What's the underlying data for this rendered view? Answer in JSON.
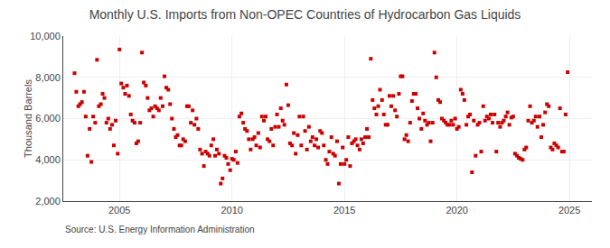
{
  "chart_data": {
    "type": "scatter",
    "title": "Monthly U.S. Imports from Non-OPEC Countries of Hydrocarbon Gas Liquids",
    "y_label": "Thousand Barrels",
    "annotations": [
      "Source: U.S. Energy Information Administration"
    ],
    "color": "#cc0000",
    "marker": "square",
    "grid": true,
    "xlim": [
      2002.5,
      2026.0
    ],
    "xticks": [
      2005,
      2010,
      2015,
      2020,
      2025
    ],
    "ylim": [
      2000,
      10000
    ],
    "yticks": [
      {
        "value": 2000,
        "label": "2,000"
      },
      {
        "value": 4000,
        "label": "4,000"
      },
      {
        "value": 6000,
        "label": "6,000"
      },
      {
        "value": 8000,
        "label": "8,000"
      },
      {
        "value": 10000,
        "label": "10,000"
      }
    ],
    "x": [
      2003.0,
      2003.08,
      2003.17,
      2003.25,
      2003.33,
      2003.42,
      2003.5,
      2003.58,
      2003.67,
      2003.75,
      2003.83,
      2003.92,
      2004.0,
      2004.08,
      2004.17,
      2004.25,
      2004.33,
      2004.42,
      2004.5,
      2004.58,
      2004.67,
      2004.75,
      2004.83,
      2004.92,
      2005.0,
      2005.08,
      2005.17,
      2005.25,
      2005.33,
      2005.42,
      2005.5,
      2005.58,
      2005.67,
      2005.75,
      2005.83,
      2005.92,
      2006.0,
      2006.08,
      2006.17,
      2006.25,
      2006.33,
      2006.42,
      2006.5,
      2006.58,
      2006.67,
      2006.75,
      2006.83,
      2006.92,
      2007.0,
      2007.08,
      2007.17,
      2007.25,
      2007.33,
      2007.42,
      2007.5,
      2007.58,
      2007.67,
      2007.75,
      2007.83,
      2007.92,
      2008.0,
      2008.08,
      2008.17,
      2008.25,
      2008.33,
      2008.42,
      2008.5,
      2008.58,
      2008.67,
      2008.75,
      2008.83,
      2008.92,
      2009.0,
      2009.08,
      2009.17,
      2009.25,
      2009.33,
      2009.42,
      2009.5,
      2009.58,
      2009.67,
      2009.75,
      2009.83,
      2009.92,
      2010.0,
      2010.08,
      2010.17,
      2010.25,
      2010.33,
      2010.42,
      2010.5,
      2010.58,
      2010.67,
      2010.75,
      2010.83,
      2010.92,
      2011.0,
      2011.08,
      2011.17,
      2011.25,
      2011.33,
      2011.42,
      2011.5,
      2011.58,
      2011.67,
      2011.75,
      2011.83,
      2011.92,
      2012.0,
      2012.08,
      2012.17,
      2012.25,
      2012.33,
      2012.42,
      2012.5,
      2012.58,
      2012.67,
      2012.75,
      2012.83,
      2012.92,
      2013.0,
      2013.08,
      2013.17,
      2013.25,
      2013.33,
      2013.42,
      2013.5,
      2013.58,
      2013.67,
      2013.75,
      2013.83,
      2013.92,
      2014.0,
      2014.08,
      2014.17,
      2014.25,
      2014.33,
      2014.42,
      2014.5,
      2014.58,
      2014.67,
      2014.75,
      2014.83,
      2014.92,
      2015.0,
      2015.08,
      2015.17,
      2015.25,
      2015.33,
      2015.42,
      2015.5,
      2015.58,
      2015.67,
      2015.75,
      2015.83,
      2015.92,
      2016.0,
      2016.08,
      2016.17,
      2016.25,
      2016.33,
      2016.42,
      2016.5,
      2016.58,
      2016.67,
      2016.75,
      2016.83,
      2016.92,
      2017.0,
      2017.08,
      2017.17,
      2017.25,
      2017.33,
      2017.42,
      2017.5,
      2017.58,
      2017.67,
      2017.75,
      2017.83,
      2017.92,
      2018.0,
      2018.08,
      2018.17,
      2018.25,
      2018.33,
      2018.42,
      2018.5,
      2018.58,
      2018.67,
      2018.75,
      2018.83,
      2018.92,
      2019.0,
      2019.08,
      2019.17,
      2019.25,
      2019.33,
      2019.42,
      2019.5,
      2019.58,
      2019.67,
      2019.75,
      2019.83,
      2019.92,
      2020.0,
      2020.08,
      2020.17,
      2020.25,
      2020.33,
      2020.42,
      2020.5,
      2020.58,
      2020.67,
      2020.75,
      2020.83,
      2020.92,
      2021.0,
      2021.08,
      2021.17,
      2021.25,
      2021.33,
      2021.42,
      2021.5,
      2021.58,
      2021.67,
      2021.75,
      2021.83,
      2021.92,
      2022.0,
      2022.08,
      2022.17,
      2022.25,
      2022.33,
      2022.42,
      2022.5,
      2022.58,
      2022.67,
      2022.75,
      2022.83,
      2022.92,
      2023.0,
      2023.08,
      2023.17,
      2023.25,
      2023.33,
      2023.42,
      2023.5,
      2023.58,
      2023.67,
      2023.75,
      2023.83,
      2023.92,
      2024.0,
      2024.08,
      2024.17,
      2024.25,
      2024.33,
      2024.42,
      2024.5,
      2024.58,
      2024.67,
      2024.75,
      2024.83,
      2024.92
    ],
    "values": [
      8200,
      7300,
      6600,
      6700,
      6800,
      7300,
      6100,
      4200,
      5500,
      3900,
      6100,
      5800,
      8850,
      6600,
      6700,
      7200,
      7000,
      5800,
      6000,
      5500,
      5700,
      4700,
      5900,
      4300,
      9350,
      7700,
      7500,
      7200,
      7600,
      7100,
      6200,
      5900,
      5800,
      4800,
      4900,
      5800,
      9200,
      7750,
      7600,
      7000,
      6400,
      6500,
      6100,
      6600,
      6500,
      6400,
      7000,
      6600,
      8050,
      7500,
      7400,
      6700,
      6000,
      5500,
      5100,
      5200,
      4700,
      4700,
      5000,
      4900,
      6600,
      6600,
      5800,
      6400,
      5700,
      6000,
      5500,
      4500,
      4300,
      3700,
      4400,
      4300,
      4200,
      4700,
      5000,
      4200,
      4500,
      4300,
      2850,
      3100,
      4200,
      4100,
      3800,
      3500,
      4050,
      4000,
      4400,
      3850,
      6100,
      6250,
      5800,
      5500,
      5400,
      5000,
      4500,
      5000,
      5100,
      4700,
      5300,
      4600,
      6100,
      5900,
      6100,
      5000,
      4900,
      5500,
      4700,
      5600,
      6200,
      5600,
      6500,
      5900,
      5700,
      7650,
      6650,
      4800,
      4700,
      5300,
      4300,
      5200,
      6100,
      4700,
      6100,
      5400,
      4500,
      5600,
      4900,
      5100,
      4700,
      5000,
      4600,
      5400,
      5300,
      4700,
      4000,
      3800,
      4400,
      5100,
      4300,
      4200,
      4900,
      2850,
      3800,
      4600,
      3800,
      4000,
      5100,
      3700,
      4800,
      4900,
      5000,
      4700,
      4500,
      5000,
      4800,
      5100,
      5500,
      5100,
      8900,
      6900,
      6500,
      6200,
      6600,
      7400,
      6900,
      6200,
      5700,
      5700,
      7100,
      6600,
      7100,
      6400,
      6100,
      7200,
      8050,
      8050,
      5000,
      5200,
      4900,
      5800,
      6850,
      7200,
      7200,
      6500,
      6000,
      5500,
      6250,
      5900,
      5700,
      5800,
      4900,
      5800,
      9200,
      8000,
      6900,
      6800,
      6000,
      5900,
      5800,
      5700,
      5700,
      5900,
      5700,
      6000,
      5500,
      5600,
      7400,
      7200,
      6900,
      5700,
      6100,
      6200,
      3400,
      5900,
      4200,
      5700,
      5800,
      4400,
      6600,
      5900,
      6100,
      6000,
      6200,
      5800,
      6200,
      4400,
      5800,
      5600,
      5800,
      5900,
      6100,
      6300,
      5700,
      6050,
      6100,
      4300,
      4200,
      4100,
      4050,
      4000,
      4500,
      4600,
      5900,
      6600,
      5800,
      5900,
      6100,
      5600,
      6100,
      5100,
      5700,
      6300,
      6700,
      6600,
      4600,
      4500,
      4800,
      4700,
      4600,
      6500,
      4400,
      4400,
      6200,
      8250
    ]
  }
}
